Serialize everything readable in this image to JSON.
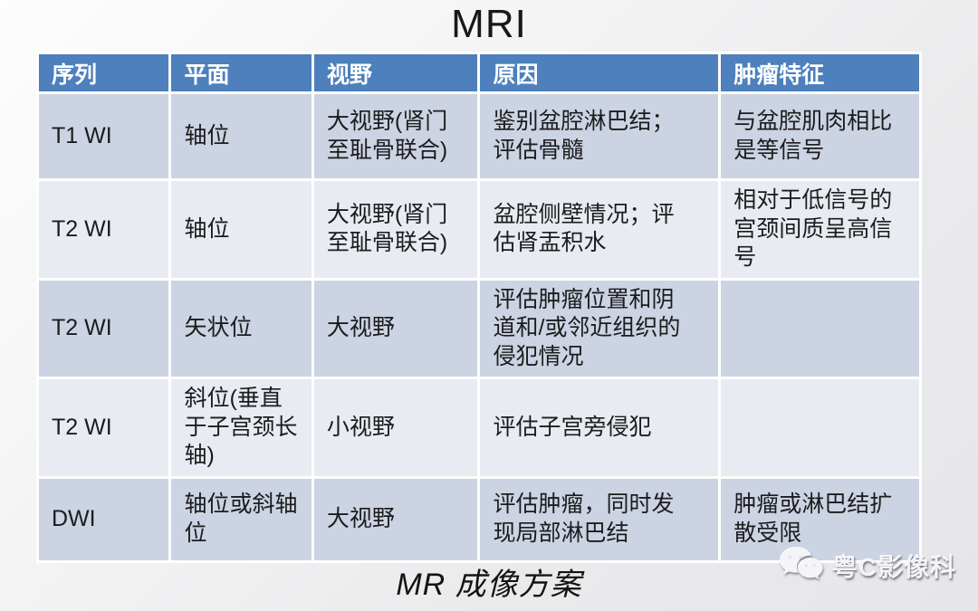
{
  "title": "MRI",
  "caption": "MR 成像方案",
  "watermark": {
    "icon": "wechat-icon",
    "text": "粤C影像科"
  },
  "colors": {
    "header_bg": "#4d80bc",
    "header_text": "#ffffff",
    "row_dark": "#ccd3e3",
    "row_light": "#e9ebf3",
    "body_text": "#1c1c1c"
  },
  "table": {
    "headers": [
      "序列",
      "平面",
      "视野",
      "原因",
      "肿瘤特征"
    ],
    "rows": [
      [
        "T1 WI",
        "轴位",
        "大视野(肾门至耻骨联合)",
        "鉴别盆腔淋巴结；评估骨髓",
        "与盆腔肌肉相比是等信号"
      ],
      [
        "T2 WI",
        "轴位",
        "大视野(肾门至耻骨联合)",
        "盆腔侧壁情况；评估肾盂积水",
        "相对于低信号的宫颈间质呈高信号"
      ],
      [
        "T2 WI",
        "矢状位",
        "大视野",
        "评估肿瘤位置和阴道和/或邻近组织的侵犯情况",
        ""
      ],
      [
        "T2 WI",
        "斜位(垂直于子宫颈长轴)",
        "小视野",
        "评估子宫旁侵犯",
        ""
      ],
      [
        "DWI",
        "轴位或斜轴位",
        "大视野",
        "评估肿瘤，同时发现局部淋巴结",
        "肿瘤或淋巴结扩散受限"
      ]
    ]
  }
}
